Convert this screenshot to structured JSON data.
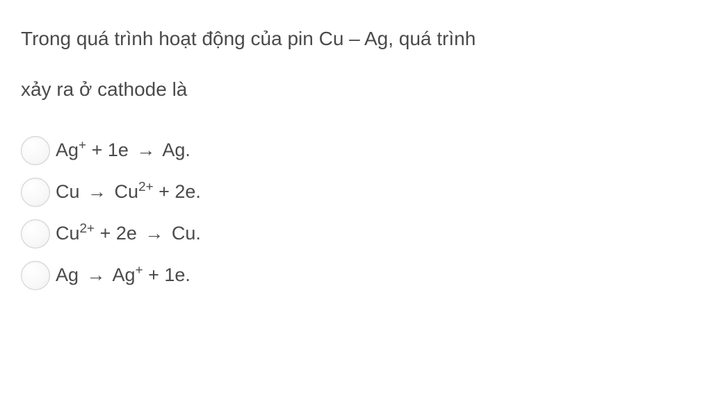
{
  "question": {
    "line1": "Trong quá trình hoạt động của pin Cu – Ag, quá trình",
    "line2": "xảy ra ở cathode là",
    "text_color": "#4a4a4a",
    "font_size": 28
  },
  "options": [
    {
      "id": "option-a",
      "parts": [
        {
          "type": "text",
          "content": "Ag"
        },
        {
          "type": "sup",
          "content": "+"
        },
        {
          "type": "text",
          "content": " + 1e "
        },
        {
          "type": "arrow",
          "content": "→"
        },
        {
          "type": "text",
          "content": " Ag."
        }
      ],
      "selected": false
    },
    {
      "id": "option-b",
      "parts": [
        {
          "type": "text",
          "content": "Cu "
        },
        {
          "type": "arrow",
          "content": "→"
        },
        {
          "type": "text",
          "content": " Cu"
        },
        {
          "type": "sup",
          "content": "2+"
        },
        {
          "type": "text",
          "content": " + 2e."
        }
      ],
      "selected": false
    },
    {
      "id": "option-c",
      "parts": [
        {
          "type": "text",
          "content": "Cu"
        },
        {
          "type": "sup",
          "content": "2+"
        },
        {
          "type": "text",
          "content": " + 2e "
        },
        {
          "type": "arrow",
          "content": "→"
        },
        {
          "type": "text",
          "content": " Cu."
        }
      ],
      "selected": false
    },
    {
      "id": "option-d",
      "parts": [
        {
          "type": "text",
          "content": "Ag "
        },
        {
          "type": "arrow",
          "content": "→"
        },
        {
          "type": "text",
          "content": " Ag"
        },
        {
          "type": "sup",
          "content": "+"
        },
        {
          "type": "text",
          "content": " + 1e."
        }
      ],
      "selected": false
    }
  ],
  "styling": {
    "background_color": "#ffffff",
    "option_text_color": "#4a4a4a",
    "option_font_size": 27,
    "radio_size": 42,
    "radio_border_color": "#d0d0d0",
    "option_gap": 18
  }
}
